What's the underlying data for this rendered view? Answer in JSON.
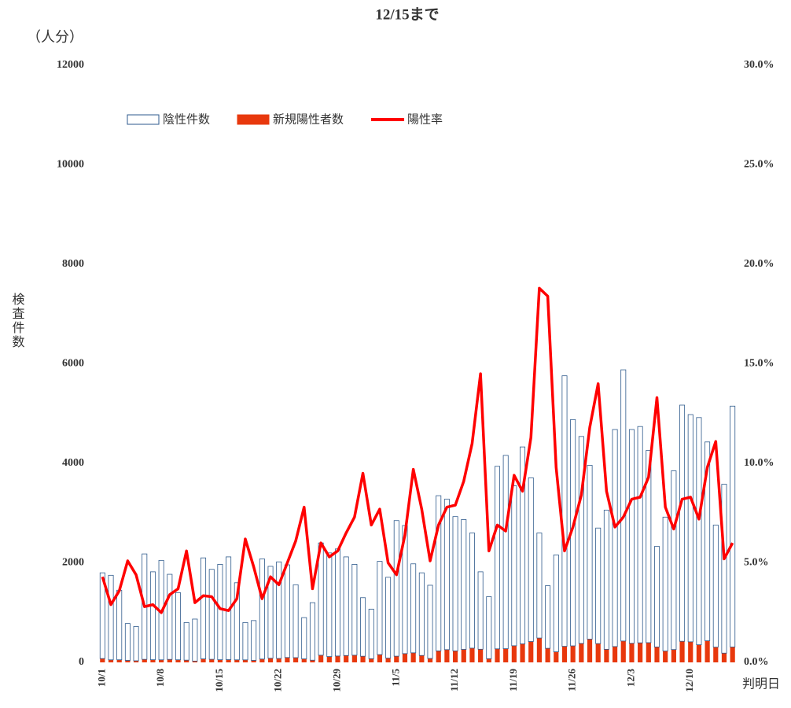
{
  "chart_data": {
    "type": "bar",
    "stacked": true,
    "title": "12/15まで",
    "y_unit": "（人分）",
    "y_label": "検査件数",
    "x_label": "判明日",
    "categories": [
      "10/1",
      null,
      null,
      null,
      null,
      null,
      null,
      "10/8",
      null,
      null,
      null,
      null,
      null,
      null,
      "10/15",
      null,
      null,
      null,
      null,
      null,
      null,
      "10/22",
      null,
      null,
      null,
      null,
      null,
      null,
      "10/29",
      null,
      null,
      null,
      null,
      null,
      null,
      "11/5",
      null,
      null,
      null,
      null,
      null,
      null,
      "11/12",
      null,
      null,
      null,
      null,
      null,
      null,
      "11/19",
      null,
      null,
      null,
      null,
      null,
      null,
      "11/26",
      null,
      null,
      null,
      null,
      null,
      null,
      "12/3",
      null,
      null,
      null,
      null,
      null,
      null,
      "12/10",
      null,
      null,
      null,
      null,
      null
    ],
    "series": [
      {
        "name": "陰性件数",
        "color": "#ffffff",
        "edge": "#2e5a8c",
        "values": [
          1723,
          1699,
          1398,
          740,
          688,
          2119,
          1767,
          1999,
          1710,
          1348,
          755,
          844,
          2030,
          1808,
          1917,
          2065,
          1549,
          750,
          800,
          2013,
          1847,
          1941,
          1862,
          1465,
          830,
          1156,
          2256,
          2083,
          2152,
          1982,
          1826,
          1176,
          996,
          1874,
          1624,
          2725,
          2574,
          1788,
          1661,
          1471,
          3119,
          3024,
          2699,
          2609,
          2314,
          1556,
          1246,
          3668,
          3885,
          3216,
          3958,
          3291,
          2111,
          1257,
          1948,
          5437,
          4548,
          4159,
          3493,
          2322,
          2797,
          4362,
          5451,
          4296,
          4347,
          3864,
          2020,
          2692,
          3592,
          4746,
          4567,
          4566,
          3996,
          2454,
          3394,
          4841
        ]
      },
      {
        "name": "新規陽性者数",
        "color": "#e8380d",
        "values": [
          77,
          51,
          52,
          40,
          32,
          61,
          53,
          51,
          60,
          52,
          45,
          26,
          70,
          62,
          53,
          55,
          51,
          50,
          40,
          67,
          83,
          79,
          98,
          95,
          70,
          44,
          144,
          117,
          128,
          138,
          144,
          124,
          74,
          156,
          86,
          125,
          176,
          192,
          139,
          79,
          231,
          256,
          231,
          261,
          286,
          264,
          74,
          272,
          275,
          334,
          372,
          419,
          489,
          283,
          212,
          323,
          332,
          381,
          467,
          378,
          263,
          318,
          429,
          384,
          393,
          396,
          310,
          228,
          258,
          424,
          413,
          354,
          434,
          306,
          186,
          309
        ]
      },
      {
        "name": "陽性率",
        "color": "#ff0000",
        "type": "line",
        "axis": "y2",
        "values": [
          4.3,
          2.9,
          3.6,
          5.1,
          4.4,
          2.8,
          2.9,
          2.5,
          3.4,
          3.7,
          5.6,
          3.0,
          3.35,
          3.3,
          2.7,
          2.6,
          3.2,
          6.2,
          4.8,
          3.2,
          4.3,
          3.9,
          5.0,
          6.1,
          7.8,
          3.7,
          6.0,
          5.3,
          5.6,
          6.5,
          7.3,
          9.5,
          6.9,
          7.7,
          5.0,
          4.4,
          6.4,
          9.7,
          7.7,
          5.1,
          6.9,
          7.8,
          7.9,
          9.1,
          11.0,
          14.5,
          5.6,
          6.9,
          6.6,
          9.4,
          8.6,
          11.3,
          18.8,
          18.4,
          9.8,
          5.6,
          6.8,
          8.4,
          11.8,
          14.0,
          8.6,
          6.8,
          7.3,
          8.2,
          8.3,
          9.3,
          13.3,
          7.8,
          6.7,
          8.2,
          8.3,
          7.2,
          9.8,
          11.1,
          5.2,
          6.0
        ]
      }
    ],
    "ylim": [
      0,
      12000
    ],
    "yticks": [
      0,
      2000,
      4000,
      6000,
      8000,
      10000,
      12000
    ],
    "y2lim": [
      0,
      30
    ],
    "y2ticks": [
      {
        "value": 0,
        "label": "0.0%"
      },
      {
        "value": 5,
        "label": "5.0%"
      },
      {
        "value": 10,
        "label": "10.0%"
      },
      {
        "value": 15,
        "label": "15.0%"
      },
      {
        "value": 20,
        "label": "20.0%"
      },
      {
        "value": 25,
        "label": "25.0%"
      },
      {
        "value": 30,
        "label": "30.0%"
      }
    ],
    "grid": false,
    "legend": "top-left"
  }
}
